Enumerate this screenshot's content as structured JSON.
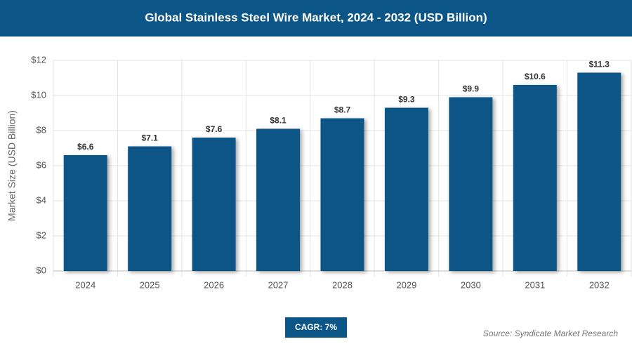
{
  "chart_data": {
    "type": "bar",
    "title": "Global Stainless Steel Wire Market, 2024 - 2032 (USD Billion)",
    "y_label": "Market Size (USD Billion)",
    "categories": [
      "2024",
      "2025",
      "2026",
      "2027",
      "2028",
      "2029",
      "2030",
      "2031",
      "2032"
    ],
    "values": [
      6.6,
      7.1,
      7.6,
      8.1,
      8.7,
      9.3,
      9.9,
      10.6,
      11.3
    ],
    "value_labels": [
      "$6.6",
      "$7.1",
      "$7.6",
      "$8.1",
      "$8.7",
      "$9.3",
      "$9.9",
      "$10.6",
      "$11.3"
    ],
    "color": "#0b5587",
    "ylim": [
      0,
      12
    ],
    "yticks": [
      {
        "value": 0,
        "label": "$0"
      },
      {
        "value": 2,
        "label": "$2"
      },
      {
        "value": 4,
        "label": "$4"
      },
      {
        "value": 6,
        "label": "$6"
      },
      {
        "value": 8,
        "label": "$8"
      },
      {
        "value": 10,
        "label": "$10"
      },
      {
        "value": 12,
        "label": "$12"
      }
    ],
    "grid": true,
    "annotation": "CAGR: 7%",
    "source": "Source: Syndicate Market Research"
  }
}
